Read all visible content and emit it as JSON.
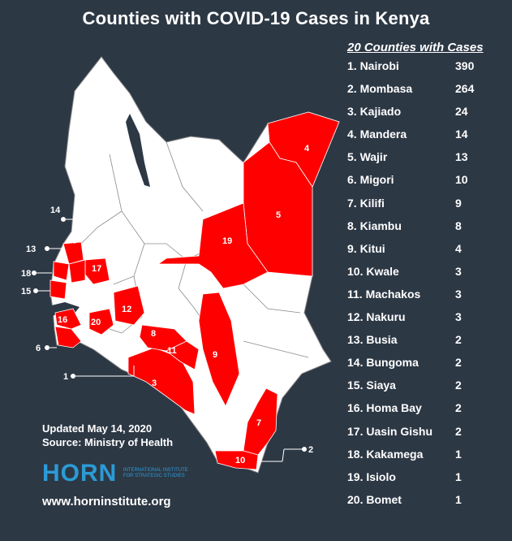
{
  "title": "Counties with COVID-19 Cases in Kenya",
  "legend": {
    "title": "20 Counties with Cases",
    "counties": [
      {
        "rank": "1.",
        "name": "Nairobi",
        "cases": 390
      },
      {
        "rank": "2.",
        "name": "Mombasa",
        "cases": 264
      },
      {
        "rank": "3.",
        "name": "Kajiado",
        "cases": 24
      },
      {
        "rank": "4.",
        "name": "Mandera",
        "cases": 14
      },
      {
        "rank": "5.",
        "name": "Wajir",
        "cases": 13
      },
      {
        "rank": "6.",
        "name": "Migori",
        "cases": 10
      },
      {
        "rank": "7.",
        "name": "Kilifi",
        "cases": 9
      },
      {
        "rank": "8.",
        "name": "Kiambu",
        "cases": 8
      },
      {
        "rank": "9.",
        "name": "Kitui",
        "cases": 4
      },
      {
        "rank": "10.",
        "name": "Kwale",
        "cases": 3
      },
      {
        "rank": "11.",
        "name": "Machakos",
        "cases": 3
      },
      {
        "rank": "12.",
        "name": "Nakuru",
        "cases": 3
      },
      {
        "rank": "13.",
        "name": "Busia",
        "cases": 2
      },
      {
        "rank": "14.",
        "name": "Bungoma",
        "cases": 2
      },
      {
        "rank": "15.",
        "name": "Siaya",
        "cases": 2
      },
      {
        "rank": "16.",
        "name": "Homa Bay",
        "cases": 2
      },
      {
        "rank": "17.",
        "name": "Uasin Gishu",
        "cases": 2
      },
      {
        "rank": "18.",
        "name": "Kakamega",
        "cases": 1
      },
      {
        "rank": "19.",
        "name": "Isiolo",
        "cases": 1
      },
      {
        "rank": "20.",
        "name": "Bomet",
        "cases": 1
      }
    ]
  },
  "map_labels": [
    "1",
    "2",
    "3",
    "4",
    "5",
    "6",
    "7",
    "8",
    "9",
    "10",
    "11",
    "12",
    "13",
    "14",
    "15",
    "16",
    "17",
    "18",
    "19",
    "20"
  ],
  "footer": {
    "updated": "Updated May 14, 2020",
    "source": "Source: Ministry of Health",
    "logo_word": "HORN",
    "logo_sub": "International Institute for Strategic Studies",
    "website": "www.horninstitute.org"
  },
  "colors": {
    "background": "#2d3845",
    "affected": "#ff0000",
    "unaffected": "#ffffff",
    "border": "#777777",
    "brand": "#2b9bd6"
  }
}
